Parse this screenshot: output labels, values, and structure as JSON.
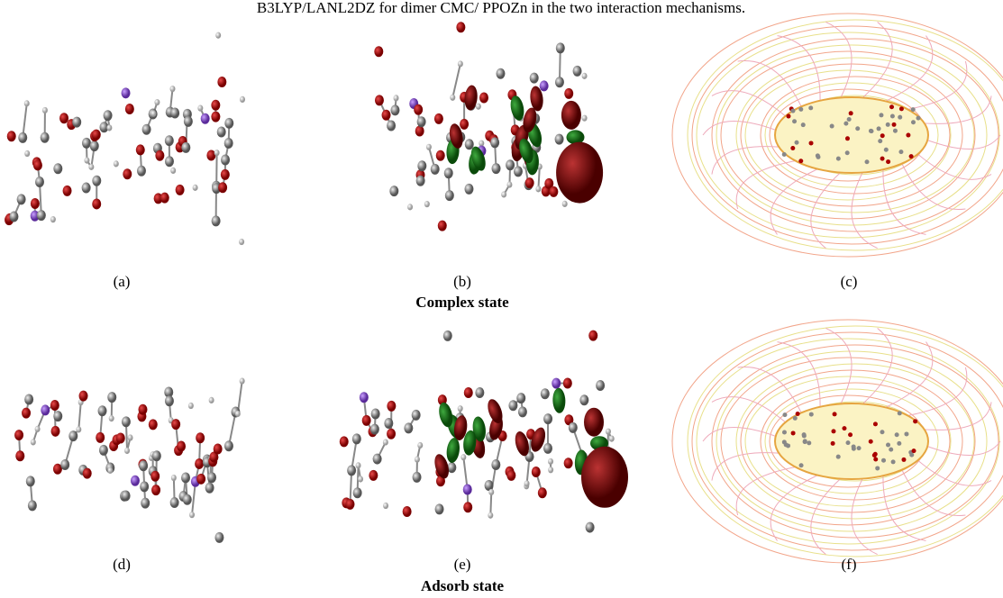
{
  "caption": "B3LYP/LANL2DZ for dimer CMC/ PPOZn in the two interaction mechanisms.",
  "panels": [
    {
      "label": "(a)"
    },
    {
      "label": "(b)"
    },
    {
      "label": "(c)"
    },
    {
      "label": "(d)"
    },
    {
      "label": "(e)"
    },
    {
      "label": "(f)"
    }
  ],
  "rows": [
    {
      "title": "Complex state"
    },
    {
      "title": "Adsorb state"
    }
  ]
}
